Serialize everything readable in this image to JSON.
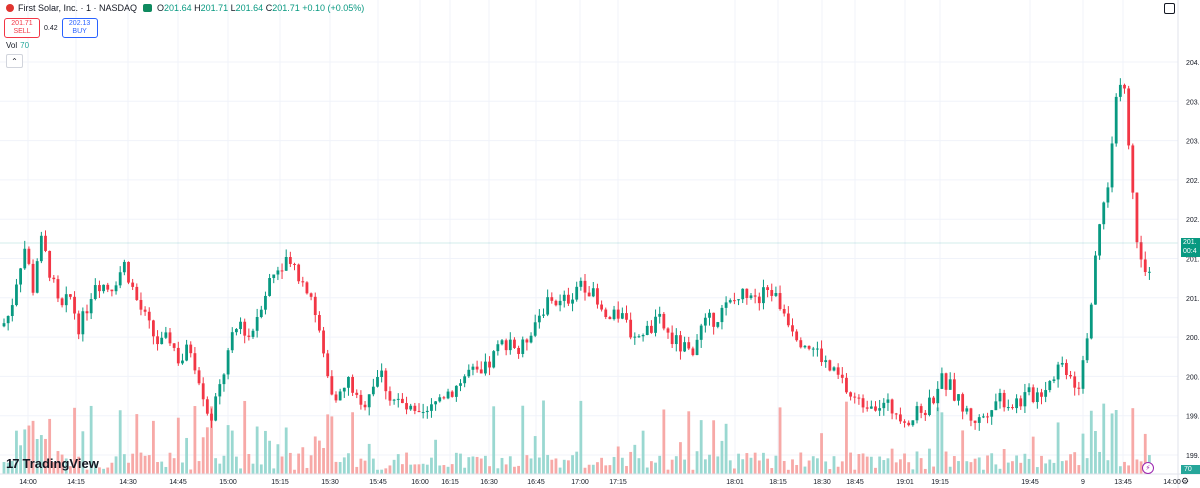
{
  "legend": {
    "title": "First Solar, Inc. · 1 · NASDAQ",
    "o_label": "O",
    "o": "201.64",
    "h_label": "H",
    "h": "201.71",
    "l_label": "L",
    "l": "201.64",
    "c_label": "C",
    "c": "201.71",
    "change": "+0.10 (+0.05%)"
  },
  "trade": {
    "sell_price": "201.71",
    "sell_label": "SELL",
    "spread": "0.42",
    "buy_price": "202.13",
    "buy_label": "BUY"
  },
  "volume": {
    "label": "Vol",
    "value": "70"
  },
  "price_axis": {
    "current_tag_top": "201.",
    "current_tag_bottom": "00:4",
    "volume_tag": "70"
  },
  "brand": "TradingView",
  "colors": {
    "up": "#089981",
    "down": "#f23645",
    "vol_up": "#9ad8d1",
    "vol_down": "#f7a9a7",
    "grid": "#f0f3fa"
  },
  "icons": [
    "symbol-logo-icon",
    "eye-icon",
    "chevron-up-icon",
    "tradingview-logo-icon",
    "bolt-icon",
    "gear-icon",
    "screenshot-icon"
  ],
  "chart_data": {
    "type": "candlestick",
    "title": "First Solar, Inc. · 1 · NASDAQ",
    "ylim": [
      199.4,
      204.5
    ],
    "y_ticks": [
      "204.",
      "203.",
      "203.",
      "202.",
      "202.",
      "201.",
      "201.",
      "200.",
      "200.",
      "199.",
      "199."
    ],
    "x_ticks": [
      "14:00",
      "14:15",
      "14:30",
      "14:45",
      "15:00",
      "15:15",
      "15:30",
      "15:45",
      "16:00",
      "16:15",
      "16:30",
      "16:45",
      "17:00",
      "17:15",
      "18:01",
      "18:15",
      "18:30",
      "18:45",
      "19:01",
      "19:15",
      "19:45",
      "9",
      "13:45",
      "14:00"
    ],
    "grid": true,
    "anchors": [
      [
        0,
        201.0
      ],
      [
        10,
        201.2
      ],
      [
        18,
        201.7
      ],
      [
        25,
        202.0
      ],
      [
        33,
        201.5
      ],
      [
        40,
        202.1
      ],
      [
        48,
        201.8
      ],
      [
        60,
        201.2
      ],
      [
        70,
        201.4
      ],
      [
        80,
        201.0
      ],
      [
        95,
        201.6
      ],
      [
        110,
        201.5
      ],
      [
        125,
        201.8
      ],
      [
        135,
        201.4
      ],
      [
        150,
        201.0
      ],
      [
        160,
        200.8
      ],
      [
        170,
        200.9
      ],
      [
        180,
        200.6
      ],
      [
        190,
        200.8
      ],
      [
        200,
        200.4
      ],
      [
        210,
        199.9
      ],
      [
        220,
        200.3
      ],
      [
        230,
        200.8
      ],
      [
        240,
        201.1
      ],
      [
        250,
        200.9
      ],
      [
        260,
        201.3
      ],
      [
        270,
        201.6
      ],
      [
        280,
        201.8
      ],
      [
        290,
        201.9
      ],
      [
        300,
        201.6
      ],
      [
        310,
        201.5
      ],
      [
        320,
        200.9
      ],
      [
        330,
        200.3
      ],
      [
        340,
        200.2
      ],
      [
        350,
        200.4
      ],
      [
        360,
        200.0
      ],
      [
        370,
        200.3
      ],
      [
        380,
        200.5
      ],
      [
        390,
        200.2
      ],
      [
        400,
        200.1
      ],
      [
        410,
        200.0
      ],
      [
        420,
        199.9
      ],
      [
        430,
        200.0
      ],
      [
        440,
        200.2
      ],
      [
        455,
        200.3
      ],
      [
        470,
        200.5
      ],
      [
        480,
        200.4
      ],
      [
        490,
        200.6
      ],
      [
        500,
        200.8
      ],
      [
        510,
        200.9
      ],
      [
        520,
        200.7
      ],
      [
        530,
        201.0
      ],
      [
        540,
        201.2
      ],
      [
        550,
        201.4
      ],
      [
        560,
        201.3
      ],
      [
        570,
        201.4
      ],
      [
        580,
        201.6
      ],
      [
        590,
        201.5
      ],
      [
        600,
        201.2
      ],
      [
        610,
        201.1
      ],
      [
        620,
        201.2
      ],
      [
        630,
        201.0
      ],
      [
        640,
        200.9
      ],
      [
        650,
        201.0
      ],
      [
        660,
        201.1
      ],
      [
        670,
        200.9
      ],
      [
        680,
        200.8
      ],
      [
        690,
        200.7
      ],
      [
        700,
        201.0
      ],
      [
        710,
        201.1
      ],
      [
        720,
        201.2
      ],
      [
        730,
        201.3
      ],
      [
        740,
        201.4
      ],
      [
        750,
        201.5
      ],
      [
        760,
        201.4
      ],
      [
        770,
        201.5
      ],
      [
        780,
        201.3
      ],
      [
        790,
        201.1
      ],
      [
        800,
        200.9
      ],
      [
        810,
        200.8
      ],
      [
        820,
        200.7
      ],
      [
        830,
        200.5
      ],
      [
        840,
        200.4
      ],
      [
        850,
        200.2
      ],
      [
        860,
        200.1
      ],
      [
        870,
        200.15
      ],
      [
        880,
        200.1
      ],
      [
        890,
        200.05
      ],
      [
        900,
        200.0
      ],
      [
        910,
        199.9
      ],
      [
        920,
        200.0
      ],
      [
        930,
        200.1
      ],
      [
        940,
        200.4
      ],
      [
        950,
        200.3
      ],
      [
        960,
        200.1
      ],
      [
        970,
        199.95
      ],
      [
        980,
        199.9
      ],
      [
        990,
        200.1
      ],
      [
        1000,
        200.2
      ],
      [
        1010,
        200.1
      ],
      [
        1020,
        200.15
      ],
      [
        1030,
        200.2
      ],
      [
        1040,
        200.25
      ],
      [
        1050,
        200.4
      ],
      [
        1060,
        200.6
      ],
      [
        1070,
        200.5
      ],
      [
        1078,
        200.3
      ],
      [
        1085,
        200.8
      ],
      [
        1092,
        201.4
      ],
      [
        1100,
        202.3
      ],
      [
        1106,
        202.6
      ],
      [
        1112,
        203.2
      ],
      [
        1118,
        204.1
      ],
      [
        1124,
        204.0
      ],
      [
        1130,
        203.0
      ],
      [
        1136,
        202.2
      ],
      [
        1142,
        201.9
      ],
      [
        1148,
        201.7
      ]
    ],
    "current_price": 201.71,
    "current_volume": 70
  }
}
